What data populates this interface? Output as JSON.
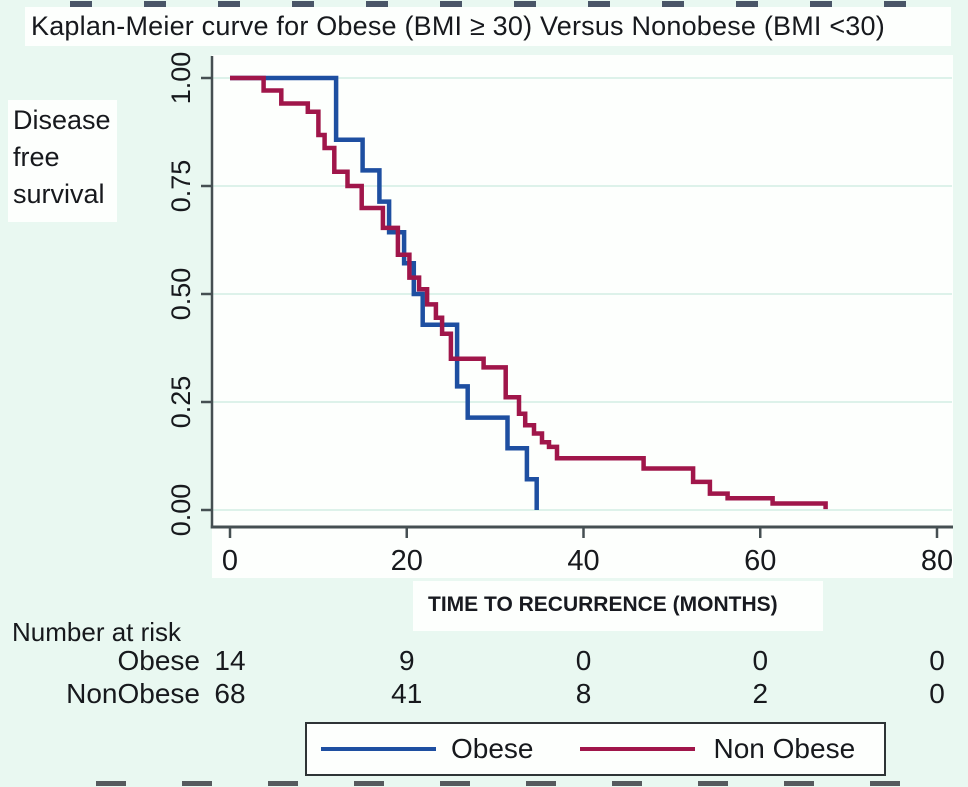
{
  "title": "Kaplan-Meier curve for Obese (BMI ≥ 30) Versus Nonobese (BMI <30)",
  "ylabel": "Disease\nfree\nsurvival",
  "xaxis_title": "TIME TO RECURRENCE (MONTHS)",
  "chart_data": {
    "type": "line",
    "subtype": "kaplan-meier-step",
    "title": "Kaplan-Meier curve for Obese (BMI ≥ 30) Versus Nonobese (BMI <30)",
    "xlabel": "TIME TO RECURRENCE (MONTHS)",
    "ylabel": "Disease free survival",
    "xlim": [
      0,
      80
    ],
    "ylim": [
      0,
      1
    ],
    "xticks": [
      0,
      20,
      40,
      60,
      80
    ],
    "ytick_labels": [
      "0.00",
      "0.25",
      "0.50",
      "0.75",
      "1.00"
    ],
    "ytick_values": [
      0,
      0.25,
      0.5,
      0.75,
      1
    ],
    "grid": true,
    "legend_position": "bottom",
    "series": [
      {
        "name": "Obese",
        "color": "#1e4fa1",
        "points": [
          [
            0,
            1
          ],
          [
            12,
            1
          ],
          [
            12,
            0.857
          ],
          [
            15,
            0.857
          ],
          [
            15,
            0.786
          ],
          [
            16.9,
            0.786
          ],
          [
            16.9,
            0.714
          ],
          [
            18,
            0.714
          ],
          [
            18,
            0.643
          ],
          [
            19.7,
            0.643
          ],
          [
            19.7,
            0.571
          ],
          [
            20.8,
            0.571
          ],
          [
            20.8,
            0.5
          ],
          [
            21.8,
            0.5
          ],
          [
            21.8,
            0.429
          ],
          [
            25.7,
            0.429
          ],
          [
            25.7,
            0.286
          ],
          [
            26.9,
            0.286
          ],
          [
            26.9,
            0.214
          ],
          [
            31.4,
            0.214
          ],
          [
            31.4,
            0.143
          ],
          [
            33.6,
            0.143
          ],
          [
            33.6,
            0.071
          ],
          [
            34.7,
            0.071
          ],
          [
            34.7,
            0
          ]
        ]
      },
      {
        "name": "Non Obese",
        "color": "#a0164a",
        "points": [
          [
            0,
            1
          ],
          [
            3.8,
            1
          ],
          [
            3.8,
            0.971
          ],
          [
            5.8,
            0.971
          ],
          [
            5.8,
            0.941
          ],
          [
            8.8,
            0.941
          ],
          [
            8.8,
            0.922
          ],
          [
            10,
            0.922
          ],
          [
            10,
            0.868
          ],
          [
            10.7,
            0.868
          ],
          [
            10.7,
            0.838
          ],
          [
            11.8,
            0.838
          ],
          [
            11.8,
            0.783
          ],
          [
            13.3,
            0.783
          ],
          [
            13.3,
            0.75
          ],
          [
            14.9,
            0.75
          ],
          [
            14.9,
            0.699
          ],
          [
            17.3,
            0.699
          ],
          [
            17.3,
            0.653
          ],
          [
            19,
            0.653
          ],
          [
            19,
            0.591
          ],
          [
            20.3,
            0.591
          ],
          [
            20.3,
            0.538
          ],
          [
            21.4,
            0.538
          ],
          [
            21.4,
            0.511
          ],
          [
            22.3,
            0.511
          ],
          [
            22.3,
            0.476
          ],
          [
            23.3,
            0.476
          ],
          [
            23.3,
            0.445
          ],
          [
            24,
            0.445
          ],
          [
            24,
            0.408
          ],
          [
            25,
            0.408
          ],
          [
            25,
            0.35
          ],
          [
            28.7,
            0.35
          ],
          [
            28.7,
            0.33
          ],
          [
            31.2,
            0.33
          ],
          [
            31.2,
            0.261
          ],
          [
            32.7,
            0.261
          ],
          [
            32.7,
            0.223
          ],
          [
            33.4,
            0.223
          ],
          [
            33.4,
            0.196
          ],
          [
            34.4,
            0.196
          ],
          [
            34.4,
            0.177
          ],
          [
            35.3,
            0.177
          ],
          [
            35.3,
            0.157
          ],
          [
            36.1,
            0.157
          ],
          [
            36.1,
            0.146
          ],
          [
            37,
            0.146
          ],
          [
            37,
            0.12
          ],
          [
            46.8,
            0.12
          ],
          [
            46.8,
            0.096
          ],
          [
            52.4,
            0.096
          ],
          [
            52.4,
            0.065
          ],
          [
            54.3,
            0.065
          ],
          [
            54.3,
            0.038
          ],
          [
            56.3,
            0.038
          ],
          [
            56.3,
            0.027
          ],
          [
            61.4,
            0.027
          ],
          [
            61.4,
            0.015
          ],
          [
            67.4,
            0.015
          ],
          [
            67.4,
            0.002
          ]
        ]
      }
    ]
  },
  "risk_table": {
    "header": "Number at risk",
    "times": [
      0,
      20,
      40,
      60,
      80
    ],
    "rows": [
      {
        "label": "Obese",
        "values": [
          "14",
          "9",
          "0",
          "0",
          "0"
        ]
      },
      {
        "label": "NonObese",
        "values": [
          "68",
          "41",
          "8",
          "2",
          "0"
        ]
      }
    ]
  },
  "legend": {
    "entries": [
      {
        "label": "Obese",
        "color": "#1e4fa1"
      },
      {
        "label": "Non Obese",
        "color": "#a0164a"
      }
    ]
  },
  "colors": {
    "background": "#e9f8f1",
    "panel": "#fdfffd",
    "grid": "#ddf2ea",
    "axis": "#454f52",
    "text": "#17191d"
  }
}
